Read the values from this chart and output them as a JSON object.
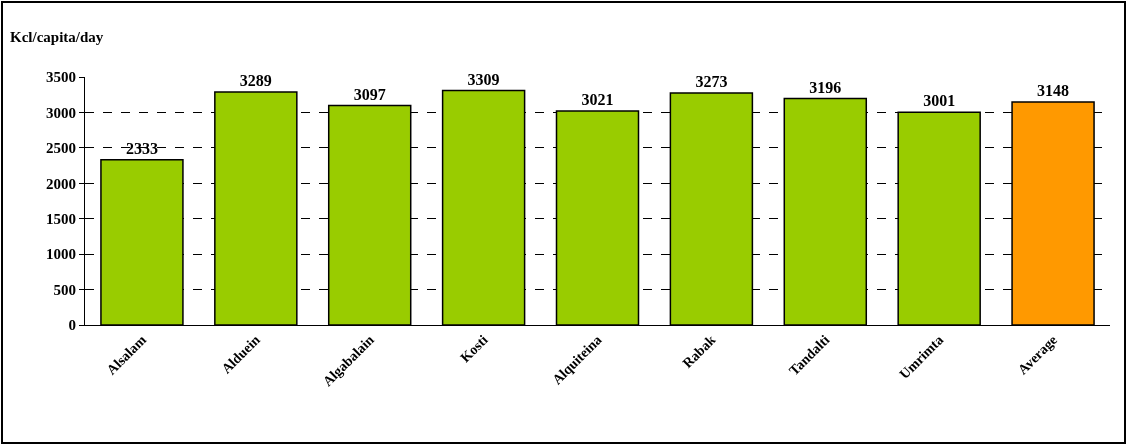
{
  "chart_data": {
    "type": "bar",
    "ylabel": "Kcl/capita/day",
    "categories": [
      "Alsalam",
      "Alduein",
      "Algabalain",
      "Kosti",
      "Alquiteina",
      "Rabak",
      "Tandalti",
      "Umrimta",
      "Average"
    ],
    "values": [
      2333,
      3289,
      3097,
      3309,
      3021,
      3273,
      3196,
      3001,
      3148
    ],
    "colors": [
      "#99cc00",
      "#99cc00",
      "#99cc00",
      "#99cc00",
      "#99cc00",
      "#99cc00",
      "#99cc00",
      "#99cc00",
      "#ff9900"
    ],
    "ylim": [
      0,
      3500
    ],
    "yticks": [
      0,
      500,
      1000,
      1500,
      2000,
      2500,
      3000,
      3500
    ],
    "grid": "y",
    "data_labels": true
  }
}
